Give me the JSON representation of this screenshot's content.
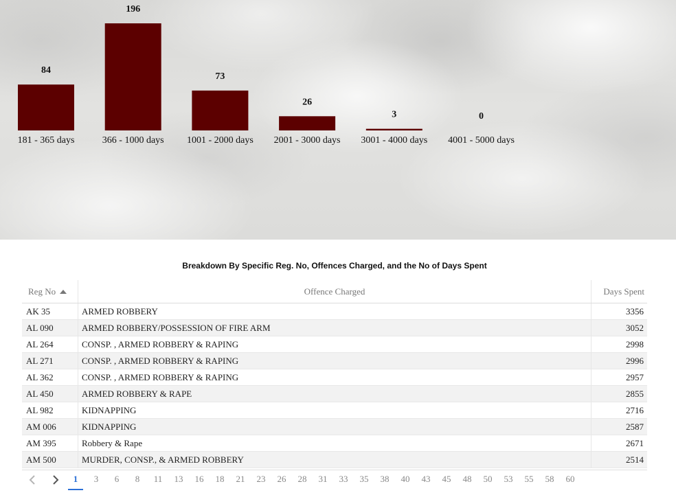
{
  "chart_data": {
    "type": "bar",
    "categories": [
      "181 - 365 days",
      "366 - 1000 days",
      "1001 - 2000 days",
      "2001 - 3000 days",
      "3001 - 4000 days",
      "4001 - 5000 days"
    ],
    "values": [
      84,
      196,
      73,
      26,
      3,
      0
    ],
    "bar_color": "#5c0000",
    "value_labels": true,
    "legend": "none",
    "grid": false
  },
  "table": {
    "title": "Breakdown By Specific Reg. No, Offences Charged, and the No of Days Spent",
    "columns": {
      "reg_no": "Reg No",
      "offence": "Offence Charged",
      "days": "Days Spent"
    },
    "sort": "ascending",
    "rows": [
      {
        "reg": "AK 35",
        "offence": "ARMED ROBBERY",
        "days": "3356"
      },
      {
        "reg": "AL 090",
        "offence": "ARMED ROBBERY/POSSESSION OF FIRE ARM",
        "days": "3052"
      },
      {
        "reg": "AL 264",
        "offence": "CONSP. , ARMED ROBBERY & RAPING",
        "days": "2998"
      },
      {
        "reg": "AL 271",
        "offence": "CONSP. , ARMED ROBBERY & RAPING",
        "days": "2996"
      },
      {
        "reg": "AL 362",
        "offence": "CONSP. , ARMED ROBBERY & RAPING",
        "days": "2957"
      },
      {
        "reg": "AL 450",
        "offence": "ARMED ROBBERY & RAPE",
        "days": "2855"
      },
      {
        "reg": "AL 982",
        "offence": "KIDNAPPING",
        "days": "2716"
      },
      {
        "reg": "AM 006",
        "offence": "KIDNAPPING",
        "days": "2587"
      },
      {
        "reg": "AM 395",
        "offence": "Robbery & Rape",
        "days": "2671"
      },
      {
        "reg": "AM 500",
        "offence": "MURDER, CONSP., & ARMED ROBBERY",
        "days": "2514"
      }
    ]
  },
  "pagination": {
    "prev_icon": "chevron-left-icon",
    "next_icon": "chevron-right-icon",
    "pages": [
      "1",
      "3",
      "6",
      "8",
      "11",
      "13",
      "16",
      "18",
      "21",
      "23",
      "26",
      "28",
      "31",
      "33",
      "35",
      "38",
      "40",
      "43",
      "45",
      "48",
      "50",
      "53",
      "55",
      "58",
      "60"
    ],
    "active": "1",
    "active_color": "#2a6fd6"
  }
}
